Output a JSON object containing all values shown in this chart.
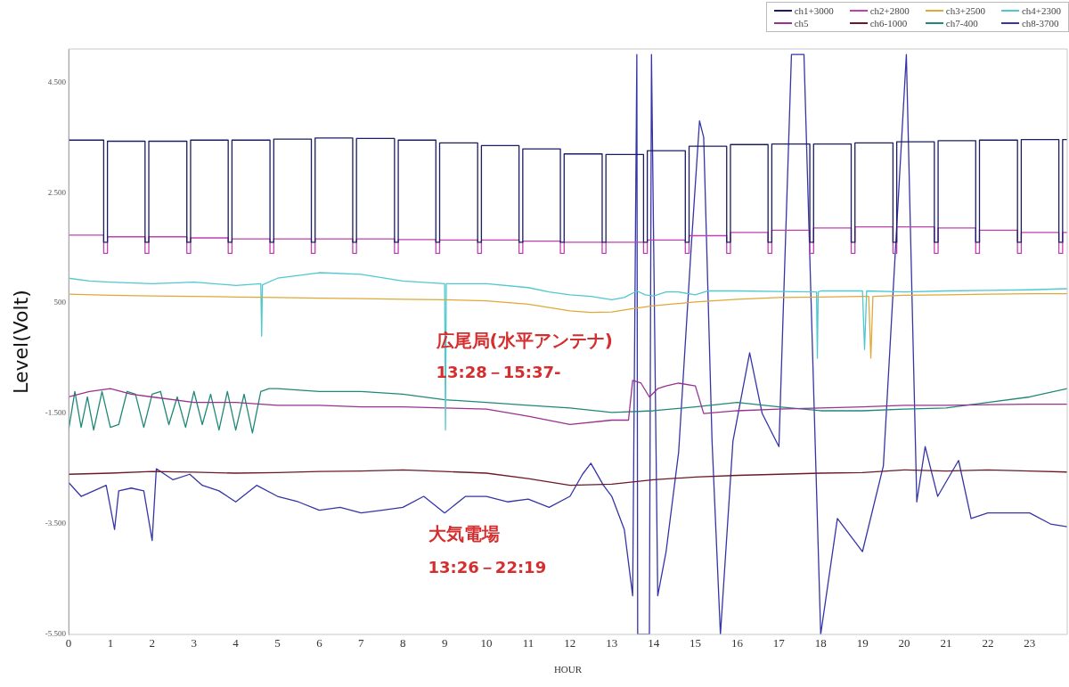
{
  "chart_data": {
    "type": "line",
    "xlabel": "HOUR",
    "ylabel": "Level(Volt)",
    "xlim": [
      0,
      23.9
    ],
    "xticks": [
      0,
      1,
      2,
      3,
      4,
      5,
      6,
      7,
      8,
      9,
      10,
      11,
      12,
      13,
      14,
      15,
      16,
      17,
      18,
      19,
      20,
      21,
      22,
      23
    ],
    "ylim": [
      -5500,
      5100
    ],
    "yticks": [
      {
        "value": 4500,
        "label": "4.500"
      },
      {
        "value": 2500,
        "label": "2.500"
      },
      {
        "value": 500,
        "label": "500"
      },
      {
        "value": -1500,
        "label": "-1.500"
      },
      {
        "value": -3500,
        "label": "-3.500"
      },
      {
        "value": -5500,
        "label": "-5.500"
      }
    ],
    "grid": false,
    "legend": "top right",
    "marker": "none",
    "line_style": "solid",
    "annotations": [
      "広尾局(水平アンテナ)",
      "13:28－15:37-",
      "大気電場",
      "13:26－22:19"
    ],
    "series": [
      {
        "name": "ch1+3000",
        "color": "#1c1c60",
        "x": [
          0,
          0.84,
          0.84,
          0.93,
          0.93,
          1.83,
          1.83,
          1.92,
          1.92,
          2.83,
          2.83,
          2.92,
          2.92,
          3.82,
          3.82,
          3.91,
          3.91,
          4.82,
          4.82,
          4.91,
          4.91,
          5.81,
          5.81,
          5.9,
          5.9,
          6.8,
          6.8,
          6.89,
          6.89,
          7.8,
          7.8,
          7.89,
          7.89,
          8.79,
          8.79,
          8.88,
          8.88,
          9.79,
          9.79,
          9.88,
          9.88,
          10.78,
          10.78,
          10.87,
          10.87,
          11.77,
          11.77,
          11.86,
          11.86,
          12.77,
          12.77,
          12.86,
          12.86,
          13.76,
          13.76,
          13.85,
          13.85,
          14.76,
          14.76,
          14.85,
          14.85,
          15.75,
          15.75,
          15.84,
          15.84,
          16.74,
          16.74,
          16.83,
          16.83,
          17.74,
          17.74,
          17.83,
          17.83,
          18.73,
          18.73,
          18.82,
          18.82,
          19.73,
          19.73,
          19.82,
          19.82,
          20.72,
          20.72,
          20.81,
          20.81,
          21.71,
          21.71,
          21.8,
          21.8,
          22.71,
          22.71,
          22.8,
          22.8,
          23.7,
          23.7,
          23.79,
          23.79,
          23.9
        ],
        "values": [
          3450,
          3450,
          1600,
          1600,
          3430,
          3430,
          1600,
          1600,
          3430,
          3430,
          1600,
          1600,
          3450,
          3450,
          1600,
          1600,
          3450,
          3450,
          1600,
          1600,
          3470,
          3470,
          1600,
          1600,
          3490,
          3490,
          1600,
          1600,
          3480,
          3480,
          1600,
          1600,
          3450,
          3450,
          1600,
          1600,
          3400,
          3400,
          1600,
          1600,
          3350,
          3350,
          1600,
          1600,
          3290,
          3290,
          1600,
          1600,
          3200,
          3200,
          1600,
          1600,
          3190,
          3190,
          1600,
          1600,
          3260,
          3260,
          1600,
          1600,
          3340,
          3340,
          1600,
          1600,
          3370,
          3370,
          1600,
          1600,
          3380,
          3380,
          1600,
          1600,
          3380,
          3380,
          1600,
          1600,
          3400,
          3400,
          1600,
          1600,
          3420,
          3420,
          1600,
          1600,
          3440,
          3440,
          1600,
          1600,
          3450,
          3450,
          1600,
          1600,
          3460,
          3460,
          1600,
          1600,
          3460,
          3460
        ]
      },
      {
        "name": "ch2+2800",
        "color": "#c040b0",
        "x": [
          0,
          0.84,
          0.84,
          0.93,
          0.93,
          1.83,
          1.83,
          1.92,
          1.92,
          2.83,
          2.83,
          2.92,
          2.92,
          3.82,
          3.82,
          3.91,
          3.91,
          4.82,
          4.82,
          4.91,
          4.91,
          5.81,
          5.81,
          5.9,
          5.9,
          6.8,
          6.8,
          6.89,
          6.89,
          7.8,
          7.8,
          7.89,
          7.89,
          8.79,
          8.79,
          8.88,
          8.88,
          9.79,
          9.79,
          9.88,
          9.88,
          10.78,
          10.78,
          10.87,
          10.87,
          11.77,
          11.77,
          11.86,
          11.86,
          12.77,
          12.77,
          12.86,
          12.86,
          13.76,
          13.76,
          13.85,
          13.85,
          14.76,
          14.76,
          14.85,
          14.85,
          15.75,
          15.75,
          15.84,
          15.84,
          16.74,
          16.74,
          16.83,
          16.83,
          17.74,
          17.74,
          17.83,
          17.83,
          18.73,
          18.73,
          18.82,
          18.82,
          19.73,
          19.73,
          19.82,
          19.82,
          20.72,
          20.72,
          20.81,
          20.81,
          21.71,
          21.71,
          21.8,
          21.8,
          22.71,
          22.71,
          22.8,
          22.8,
          23.7,
          23.7,
          23.79,
          23.79,
          23.9
        ],
        "values": [
          1730,
          1730,
          1400,
          1400,
          1700,
          1700,
          1400,
          1400,
          1700,
          1700,
          1400,
          1400,
          1680,
          1680,
          1400,
          1400,
          1660,
          1660,
          1400,
          1400,
          1660,
          1660,
          1400,
          1400,
          1660,
          1660,
          1400,
          1400,
          1660,
          1660,
          1400,
          1400,
          1650,
          1650,
          1400,
          1400,
          1640,
          1640,
          1400,
          1400,
          1640,
          1640,
          1400,
          1400,
          1620,
          1620,
          1400,
          1400,
          1600,
          1600,
          1400,
          1400,
          1600,
          1600,
          1400,
          1400,
          1640,
          1640,
          1400,
          1400,
          1720,
          1720,
          1400,
          1400,
          1780,
          1780,
          1400,
          1400,
          1820,
          1820,
          1400,
          1400,
          1860,
          1860,
          1400,
          1400,
          1880,
          1880,
          1400,
          1400,
          1880,
          1880,
          1400,
          1400,
          1860,
          1860,
          1400,
          1400,
          1820,
          1820,
          1400,
          1400,
          1780,
          1780,
          1400,
          1400,
          1780,
          1780
        ]
      },
      {
        "name": "ch3+2500",
        "color": "#e0a838",
        "x": [
          0,
          1,
          2,
          3,
          4,
          5,
          6,
          7,
          8,
          9,
          10,
          11,
          11.5,
          12,
          12.5,
          13,
          13.5,
          14,
          15,
          16,
          17,
          18,
          19,
          19.15,
          19.2,
          19.25,
          20,
          21,
          22,
          23,
          23.9
        ],
        "values": [
          660,
          640,
          630,
          620,
          610,
          600,
          590,
          580,
          570,
          560,
          540,
          480,
          420,
          360,
          330,
          340,
          400,
          450,
          520,
          570,
          600,
          610,
          620,
          620,
          -500,
          620,
          640,
          650,
          660,
          670,
          670
        ]
      },
      {
        "name": "ch4+2300",
        "color": "#50c8d0",
        "x": [
          0,
          0.5,
          1,
          2,
          3,
          4,
          4.6,
          4.62,
          4.64,
          5,
          5.5,
          6,
          7,
          8,
          9,
          9.02,
          9.04,
          10,
          11,
          11.5,
          12,
          12.5,
          13,
          13.3,
          13.6,
          13.8,
          14,
          14.3,
          14.6,
          15,
          15.3,
          16,
          17,
          17.9,
          17.92,
          17.94,
          18,
          19,
          19.05,
          19.1,
          20,
          21,
          22,
          23,
          23.9
        ],
        "values": [
          950,
          900,
          880,
          850,
          880,
          820,
          850,
          -100,
          830,
          950,
          1000,
          1050,
          1020,
          900,
          850,
          -1800,
          850,
          850,
          780,
          700,
          650,
          620,
          560,
          600,
          720,
          650,
          630,
          700,
          700,
          650,
          720,
          720,
          710,
          700,
          -500,
          700,
          720,
          720,
          -340,
          720,
          700,
          720,
          730,
          740,
          760
        ]
      },
      {
        "name": "ch5",
        "color": "#9a3090",
        "x": [
          0,
          0.5,
          1,
          1.5,
          2,
          3,
          4,
          5,
          6,
          7,
          8,
          9,
          10,
          11,
          12,
          13,
          13.4,
          13.5,
          13.7,
          13.9,
          14.1,
          14.3,
          14.6,
          15,
          15.2,
          15.5,
          16,
          17,
          18,
          19,
          20,
          21,
          22,
          23,
          23.9
        ],
        "values": [
          -1200,
          -1100,
          -1050,
          -1150,
          -1200,
          -1300,
          -1300,
          -1350,
          -1350,
          -1380,
          -1380,
          -1400,
          -1420,
          -1550,
          -1700,
          -1620,
          -1620,
          -900,
          -950,
          -1200,
          -1050,
          -1000,
          -950,
          -1000,
          -1500,
          -1480,
          -1450,
          -1420,
          -1400,
          -1380,
          -1350,
          -1350,
          -1340,
          -1330,
          -1330
        ]
      },
      {
        "name": "ch6-1000",
        "color": "#6b1a2a",
        "x": [
          0,
          1,
          2,
          3,
          4,
          5,
          6,
          7,
          8,
          9,
          10,
          11,
          12,
          13,
          14,
          15,
          16,
          17,
          18,
          19,
          20,
          21,
          22,
          23,
          23.9
        ],
        "values": [
          -2600,
          -2580,
          -2550,
          -2560,
          -2580,
          -2570,
          -2550,
          -2540,
          -2520,
          -2550,
          -2580,
          -2680,
          -2800,
          -2780,
          -2700,
          -2650,
          -2620,
          -2600,
          -2580,
          -2570,
          -2520,
          -2540,
          -2520,
          -2540,
          -2560
        ]
      },
      {
        "name": "ch7-400",
        "color": "#208878",
        "x": [
          0,
          0.15,
          0.3,
          0.45,
          0.6,
          0.8,
          1,
          1.2,
          1.4,
          1.6,
          1.8,
          2,
          2.2,
          2.4,
          2.6,
          2.8,
          3,
          3.2,
          3.4,
          3.6,
          3.8,
          4,
          4.2,
          4.4,
          4.6,
          4.8,
          5,
          6,
          7,
          8,
          9,
          10,
          11,
          12,
          13,
          14,
          15,
          16,
          17,
          18,
          19,
          20,
          21,
          22,
          23,
          23.9
        ],
        "values": [
          -1800,
          -1100,
          -1750,
          -1200,
          -1800,
          -1100,
          -1750,
          -1700,
          -1100,
          -1150,
          -1750,
          -1150,
          -1100,
          -1700,
          -1200,
          -1750,
          -1100,
          -1700,
          -1150,
          -1800,
          -1100,
          -1800,
          -1150,
          -1850,
          -1100,
          -1050,
          -1050,
          -1100,
          -1100,
          -1150,
          -1250,
          -1300,
          -1350,
          -1400,
          -1480,
          -1450,
          -1380,
          -1300,
          -1380,
          -1450,
          -1450,
          -1420,
          -1400,
          -1300,
          -1200,
          -1050
        ]
      },
      {
        "name": "ch8-3700",
        "color": "#3535a8",
        "x": [
          0,
          0.3,
          0.6,
          0.9,
          1.1,
          1.2,
          1.5,
          1.8,
          2,
          2.1,
          2.5,
          2.9,
          3.2,
          3.6,
          4,
          4.5,
          5,
          5.5,
          6,
          6.5,
          7,
          7.5,
          8,
          8.5,
          9,
          9.5,
          10,
          10.5,
          11,
          11.5,
          12,
          12.3,
          12.5,
          12.8,
          13,
          13.3,
          13.5,
          13.6,
          13.62,
          13.9,
          13.95,
          14.1,
          14.3,
          14.6,
          14.9,
          15.1,
          15.2,
          15.4,
          15.6,
          15.9,
          16.3,
          16.6,
          17,
          17.3,
          17.6,
          18,
          18.4,
          19,
          19.5,
          20.05,
          20.3,
          20.5,
          20.8,
          21.3,
          21.6,
          22,
          22.5,
          23,
          23.5,
          23.9
        ],
        "values": [
          -2750,
          -3000,
          -2900,
          -2800,
          -3600,
          -2900,
          -2850,
          -2900,
          -3800,
          -2500,
          -2700,
          -2600,
          -2800,
          -2900,
          -3100,
          -2800,
          -3000,
          -3100,
          -3250,
          -3200,
          -3300,
          -3250,
          -3200,
          -3000,
          -3300,
          -3000,
          -3000,
          -3100,
          -3050,
          -3200,
          -3000,
          -2600,
          -2400,
          -2800,
          -3000,
          -3600,
          -4800,
          5000,
          -5500,
          -5500,
          5000,
          -4800,
          -4000,
          -2200,
          1500,
          3800,
          3500,
          -2000,
          -5500,
          -2000,
          -400,
          -1500,
          -2100,
          5000,
          5000,
          -5500,
          -3400,
          -4000,
          -2450,
          5000,
          -3100,
          -2100,
          -3000,
          -2350,
          -3400,
          -3300,
          -3300,
          -3300,
          -3500,
          -3550
        ]
      }
    ]
  }
}
